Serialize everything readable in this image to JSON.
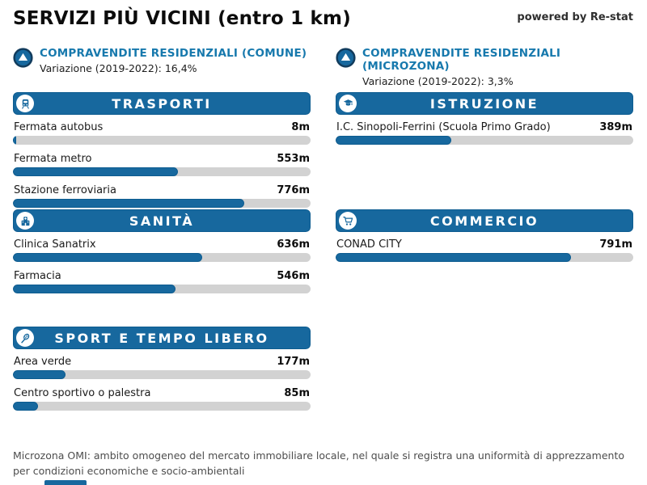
{
  "page": {
    "title": "SERVIZI PIÙ VICINI (entro 1 km)",
    "powered_by": "powered by Re-stat",
    "footer": "Microzona OMI: ambito omogeneo del mercato immobiliare locale, nel quale si registra una uniformità di apprezzamento per condizioni economiche e socio-ambientali"
  },
  "colors": {
    "accent_blue": "#17689e",
    "accent_border": "#0d5c90",
    "link_blue": "#1779ad",
    "icon_navy": "#123c5d",
    "bar_track": "#d2d2d2"
  },
  "stats": [
    {
      "icon": "trend-circle-icon",
      "label": "COMPRAVENDITE RESIDENZIALI (COMUNE)",
      "sub": "Variazione (2019-2022): 16,4%"
    },
    {
      "icon": "trend-circle-icon",
      "label": "COMPRAVENDITE RESIDENZIALI (MICROZONA)",
      "sub": "Variazione (2019-2022): 3,3%"
    }
  ],
  "range_max_m": 1000,
  "sections": [
    {
      "id": "trasporti",
      "title": "TRASPORTI",
      "icon": "train-icon",
      "column": "left",
      "rows": [
        {
          "label": "Fermata autobus",
          "value": "8m",
          "meters": 8
        },
        {
          "label": "Fermata metro",
          "value": "553m",
          "meters": 553
        },
        {
          "label": "Stazione ferroviaria",
          "value": "776m",
          "meters": 776
        }
      ]
    },
    {
      "id": "istruzione",
      "title": "ISTRUZIONE",
      "icon": "graduate-icon",
      "column": "right",
      "rows": [
        {
          "label": "I.C. Sinopoli-Ferrini (Scuola Primo Grado)",
          "value": "389m",
          "meters": 389
        }
      ]
    },
    {
      "id": "sanita",
      "title": "SANITÀ",
      "icon": "hospital-icon",
      "column": "left",
      "rows": [
        {
          "label": "Clinica Sanatrix",
          "value": "636m",
          "meters": 636
        },
        {
          "label": "Farmacia",
          "value": "546m",
          "meters": 546
        }
      ]
    },
    {
      "id": "commercio",
      "title": "COMMERCIO",
      "icon": "cart-icon",
      "column": "right",
      "rows": [
        {
          "label": "CONAD CITY",
          "value": "791m",
          "meters": 791
        }
      ]
    },
    {
      "id": "sport",
      "title": "SPORT E TEMPO LIBERO",
      "icon": "racket-icon",
      "column": "left",
      "rows": [
        {
          "label": "Area verde",
          "value": "177m",
          "meters": 177
        },
        {
          "label": "Centro sportivo o palestra",
          "value": "85m",
          "meters": 85
        }
      ]
    }
  ],
  "chart_data": [
    {
      "type": "bar",
      "orientation": "horizontal",
      "title": "TRASPORTI",
      "categories": [
        "Fermata autobus",
        "Fermata metro",
        "Stazione ferroviaria"
      ],
      "values": [
        8,
        553,
        776
      ],
      "unit": "m",
      "xlim": [
        0,
        1000
      ],
      "bar_color": "#17689e"
    },
    {
      "type": "bar",
      "orientation": "horizontal",
      "title": "ISTRUZIONE",
      "categories": [
        "I.C. Sinopoli-Ferrini (Scuola Primo Grado)"
      ],
      "values": [
        389
      ],
      "unit": "m",
      "xlim": [
        0,
        1000
      ],
      "bar_color": "#17689e"
    },
    {
      "type": "bar",
      "orientation": "horizontal",
      "title": "SANITÀ",
      "categories": [
        "Clinica Sanatrix",
        "Farmacia"
      ],
      "values": [
        636,
        546
      ],
      "unit": "m",
      "xlim": [
        0,
        1000
      ],
      "bar_color": "#17689e"
    },
    {
      "type": "bar",
      "orientation": "horizontal",
      "title": "COMMERCIO",
      "categories": [
        "CONAD CITY"
      ],
      "values": [
        791
      ],
      "unit": "m",
      "xlim": [
        0,
        1000
      ],
      "bar_color": "#17689e"
    },
    {
      "type": "bar",
      "orientation": "horizontal",
      "title": "SPORT E TEMPO LIBERO",
      "categories": [
        "Area verde",
        "Centro sportivo o palestra"
      ],
      "values": [
        177,
        85
      ],
      "unit": "m",
      "xlim": [
        0,
        1000
      ],
      "bar_color": "#17689e"
    }
  ]
}
